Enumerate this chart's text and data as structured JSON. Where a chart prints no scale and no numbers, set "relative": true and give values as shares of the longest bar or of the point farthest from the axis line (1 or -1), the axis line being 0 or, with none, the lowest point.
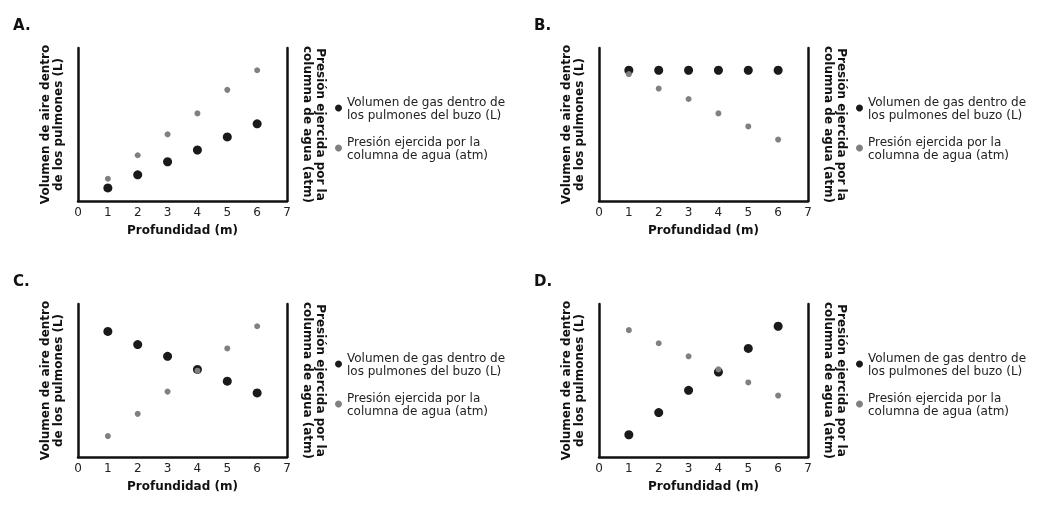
{
  "chart_data": [
    {
      "type": "scatter",
      "title": "A.",
      "xlabel": "Profundidad (m)",
      "ylabel": "Volumen de aire dentro\nde los pulmones (L)",
      "y2label": "Presión ejercida por la\ncolumna de agua (atm)",
      "x": [
        1,
        2,
        3,
        4,
        5,
        6
      ],
      "xlim": [
        0,
        7
      ],
      "xticks": [
        0,
        1,
        2,
        3,
        4,
        5,
        6,
        7
      ],
      "relative": true,
      "tick_labels": "x",
      "grid": false,
      "legend": "right",
      "marker": "circle",
      "series": [
        {
          "name": "Volumen de gas dentro de\nlos pulmones del buzo (L)",
          "color": "#1a1a1a",
          "values": [
            0.1,
            0.2,
            0.3,
            0.39,
            0.49,
            0.59
          ]
        },
        {
          "name": "Presión ejercida por la\ncolumna de agua (atm)",
          "color": "#808080",
          "values": [
            0.17,
            0.35,
            0.51,
            0.67,
            0.85,
            1
          ]
        }
      ]
    },
    {
      "type": "scatter",
      "title": "B.",
      "xlabel": "Profundidad (m)",
      "ylabel": "Volumen de aire dentro\nde los pulmones (L)",
      "y2label": "Presión ejercida por la\ncolumna de agua (atm)",
      "x": [
        1,
        2,
        3,
        4,
        5,
        6
      ],
      "xlim": [
        0,
        7
      ],
      "xticks": [
        0,
        1,
        2,
        3,
        4,
        5,
        6,
        7
      ],
      "relative": true,
      "tick_labels": "x",
      "grid": false,
      "legend": "right",
      "marker": "circle",
      "series": [
        {
          "name": "Volumen de gas dentro de\nlos pulmones del buzo (L)",
          "color": "#1a1a1a",
          "values": [
            1,
            1,
            1,
            1,
            1,
            1
          ]
        },
        {
          "name": "Presión ejercida por la\ncolumna de agua (atm)",
          "color": "#808080",
          "values": [
            0.97,
            0.86,
            0.78,
            0.67,
            0.57,
            0.47
          ]
        }
      ]
    },
    {
      "type": "scatter",
      "title": "C.",
      "xlabel": "Profundidad (m)",
      "ylabel": "Volumen de aire dentro\nde los pulmones (L)",
      "y2label": "Presión ejercida por la\ncolumna de agua (atm)",
      "x": [
        1,
        2,
        3,
        4,
        5,
        6
      ],
      "xlim": [
        0,
        7
      ],
      "xticks": [
        0,
        1,
        2,
        3,
        4,
        5,
        6,
        7
      ],
      "relative": true,
      "tick_labels": "x",
      "grid": false,
      "legend": "right",
      "marker": "circle",
      "series": [
        {
          "name": "Volumen de gas dentro de\nlos pulmones del buzo (L)",
          "color": "#1a1a1a",
          "values": [
            0.96,
            0.86,
            0.77,
            0.67,
            0.58,
            0.49
          ]
        },
        {
          "name": "Presión ejercida por la\ncolumna de agua (atm)",
          "color": "#808080",
          "values": [
            0.16,
            0.33,
            0.5,
            0.66,
            0.83,
            1
          ]
        }
      ]
    },
    {
      "type": "scatter",
      "title": "D.",
      "xlabel": "Profundidad (m)",
      "ylabel": "Volumen de aire dentro\nde los pulmones (L)",
      "y2label": "Presión ejercida por la\ncolumna de agua (atm)",
      "x": [
        1,
        2,
        3,
        4,
        5,
        6
      ],
      "xlim": [
        0,
        7
      ],
      "xticks": [
        0,
        1,
        2,
        3,
        4,
        5,
        6,
        7
      ],
      "relative": true,
      "tick_labels": "x",
      "grid": false,
      "legend": "right",
      "marker": "circle",
      "series": [
        {
          "name": "Volumen de gas dentro de\nlos pulmones del buzo (L)",
          "color": "#1a1a1a",
          "values": [
            0.17,
            0.34,
            0.51,
            0.65,
            0.83,
            1
          ]
        },
        {
          "name": "Presión ejercida por la\ncolumna de agua (atm)",
          "color": "#808080",
          "values": [
            0.97,
            0.87,
            0.77,
            0.67,
            0.57,
            0.47
          ]
        }
      ]
    }
  ]
}
